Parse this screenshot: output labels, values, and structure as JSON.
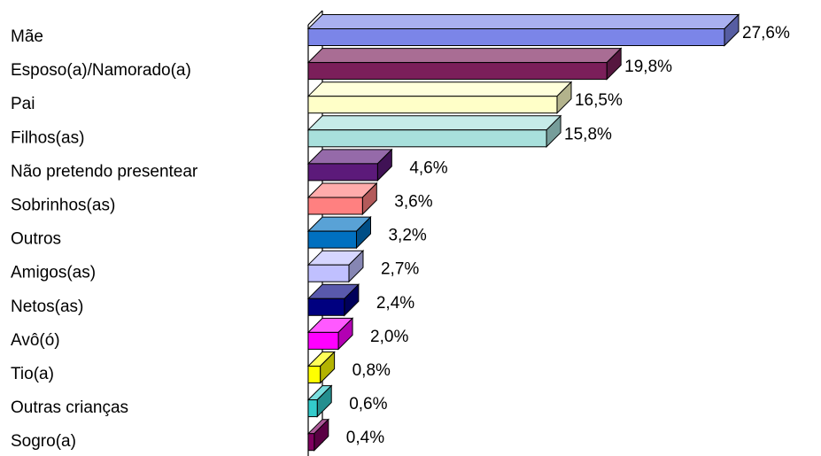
{
  "chart_data": {
    "type": "bar",
    "orientation": "horizontal",
    "three_d": true,
    "categories": [
      "Mãe",
      "Esposo(a)/Namorado(a)",
      "Pai",
      "Filhos(as)",
      "Não pretendo presentear",
      "Sobrinhos(as)",
      "Outros",
      "Amigos(as)",
      "Netos(as)",
      "Avô(ó)",
      "Tio(a)",
      "Outras crianças",
      "Sogro(a)"
    ],
    "values": [
      27.6,
      19.8,
      16.5,
      15.8,
      4.6,
      3.6,
      3.2,
      2.7,
      2.4,
      2.0,
      0.8,
      0.6,
      0.4
    ],
    "value_labels": [
      "27,6%",
      "19,8%",
      "16,5%",
      "15,8%",
      "4,6%",
      "3,6%",
      "3,2%",
      "2,7%",
      "2,4%",
      "2,0%",
      "0,8%",
      "0,6%",
      "0,4%"
    ],
    "colors": [
      "#7b85e8",
      "#7b1f5a",
      "#ffffc8",
      "#a8e0dc",
      "#5c1a7a",
      "#ff8080",
      "#0070c0",
      "#c0c0ff",
      "#000080",
      "#ff00ff",
      "#ffff00",
      "#33cccc",
      "#800060"
    ]
  }
}
